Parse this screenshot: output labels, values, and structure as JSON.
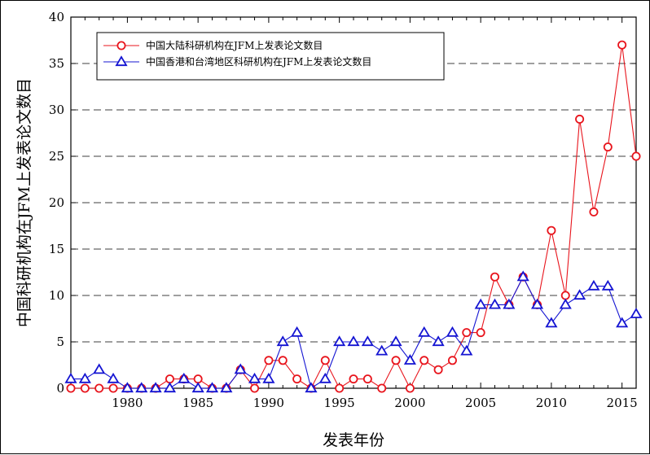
{
  "chart_data": {
    "type": "line",
    "xlabel": "发表年份",
    "ylabel": "中国科研机构在JFM上发表论文数目",
    "xlim": [
      1976,
      2016
    ],
    "ylim": [
      0,
      40
    ],
    "xticks": [
      1980,
      1985,
      1990,
      1995,
      2000,
      2005,
      2010,
      2015
    ],
    "yticks": [
      0,
      5,
      10,
      15,
      20,
      25,
      30,
      35,
      40
    ],
    "grid": "horizontal dashed",
    "legend_position": "top-left",
    "x": [
      1976,
      1977,
      1978,
      1979,
      1980,
      1981,
      1982,
      1983,
      1984,
      1985,
      1986,
      1987,
      1988,
      1989,
      1990,
      1991,
      1992,
      1993,
      1994,
      1995,
      1996,
      1997,
      1998,
      1999,
      2000,
      2001,
      2002,
      2003,
      2004,
      2005,
      2006,
      2007,
      2008,
      2009,
      2010,
      2011,
      2012,
      2013,
      2014,
      2015,
      2016
    ],
    "series": [
      {
        "name": "中国大陆科研机构在JFM上发表论文数目",
        "color": "#e8141c",
        "marker": "circle",
        "values": [
          0,
          0,
          0,
          0,
          0,
          0,
          0,
          1,
          1,
          1,
          0,
          0,
          2,
          0,
          3,
          3,
          1,
          0,
          3,
          0,
          1,
          1,
          0,
          3,
          0,
          3,
          2,
          3,
          6,
          6,
          12,
          9,
          12,
          9,
          17,
          10,
          29,
          19,
          26,
          37,
          25
        ]
      },
      {
        "name": "中国香港和台湾地区科研机构在JFM上发表论文数目",
        "color": "#1414d2",
        "marker": "triangle",
        "values": [
          1,
          1,
          2,
          1,
          0,
          0,
          0,
          0,
          1,
          0,
          0,
          0,
          2,
          1,
          1,
          5,
          6,
          0,
          1,
          5,
          5,
          5,
          4,
          5,
          3,
          6,
          5,
          6,
          4,
          9,
          9,
          9,
          12,
          9,
          7,
          9,
          10,
          11,
          11,
          7,
          8
        ]
      }
    ]
  }
}
